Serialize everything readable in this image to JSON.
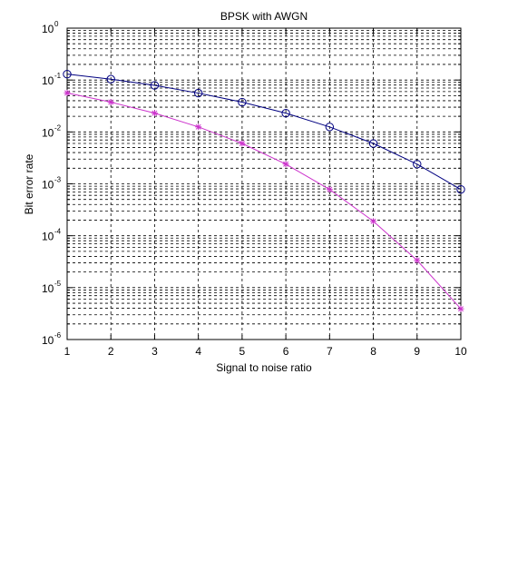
{
  "chart_data": {
    "type": "line",
    "title": "BPSK with AWGN",
    "xlabel": "Signal to noise ratio",
    "ylabel": "Bit error rate",
    "xlim": [
      1,
      10
    ],
    "ylim": [
      1e-06,
      1
    ],
    "yscale": "log",
    "grid": true,
    "x": [
      1,
      2,
      3,
      4,
      5,
      6,
      7,
      8,
      9,
      10
    ],
    "xticks": [
      "1",
      "2",
      "3",
      "4",
      "5",
      "6",
      "7",
      "8",
      "9",
      "10"
    ],
    "yticks": [
      {
        "base": "10",
        "exp": "0"
      },
      {
        "base": "10",
        "exp": "-1"
      },
      {
        "base": "10",
        "exp": "-2"
      },
      {
        "base": "10",
        "exp": "-3"
      },
      {
        "base": "10",
        "exp": "-4"
      },
      {
        "base": "10",
        "exp": "-5"
      },
      {
        "base": "10",
        "exp": "-6"
      }
    ],
    "series": [
      {
        "color": "#000080",
        "marker": "circle",
        "values": [
          0.13,
          0.104,
          0.079,
          0.056,
          0.0375,
          0.023,
          0.0125,
          0.006,
          0.0024,
          0.00078
        ]
      },
      {
        "color": "#cc33cc",
        "marker": "star",
        "values": [
          0.0565,
          0.0375,
          0.023,
          0.0125,
          0.006,
          0.0024,
          0.00078,
          0.00019,
          3.36e-05,
          3.9e-06
        ]
      }
    ]
  }
}
